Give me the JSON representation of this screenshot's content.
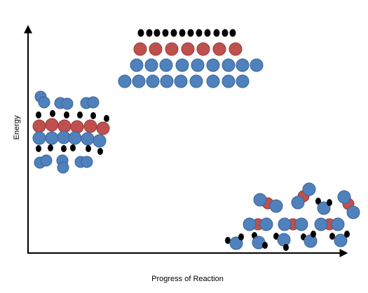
{
  "axes": {
    "x_label": "Progress of Reaction",
    "y_label": "Energy"
  },
  "colors": {
    "blue_fill": "#4f81bd",
    "blue_stroke": "#3a6595",
    "red_fill": "#c0504d",
    "red_stroke": "#943c3a",
    "black": "#000000",
    "axis": "#000000"
  },
  "groups": [
    "reactants",
    "transition-state",
    "products"
  ]
}
